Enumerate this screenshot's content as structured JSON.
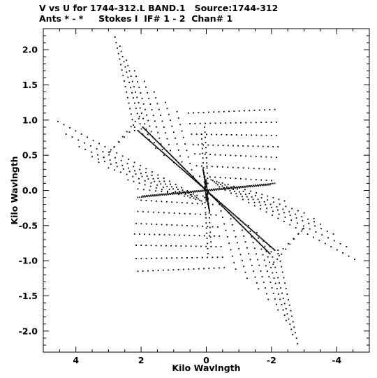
{
  "header": {
    "line1": "V vs U for 1744-312.L BAND.1   Source:1744-312",
    "line2": "Ants * - *     Stokes I  IF# 1 - 2  Chan# 1"
  },
  "chart_data": {
    "type": "scatter",
    "title": "V vs U for 1744-312.L BAND.1   Source:1744-312",
    "subtitle": "Ants * - *     Stokes I  IF# 1 - 2  Chan# 1",
    "xlabel": "Kilo Wavlngth",
    "ylabel": "Kilo Wavlngth",
    "xlim": [
      5.0,
      -5.0
    ],
    "ylim": [
      -2.3,
      2.3
    ],
    "x_ticks": [
      4,
      2,
      0,
      -2,
      -4
    ],
    "x_tick_labels": [
      "4",
      "2",
      "0",
      "-2",
      "-4"
    ],
    "y_ticks": [
      2.0,
      1.5,
      1.0,
      0.5,
      0.0,
      -0.5,
      -1.0,
      -1.5,
      -2.0
    ],
    "y_tick_labels": [
      "2.0",
      "1.5",
      "1.0",
      "0.5",
      "0.0",
      "-0.5",
      "-1.0",
      "-1.5",
      "-2.0"
    ],
    "grid": false,
    "marker_color": "#000000",
    "tracks": [
      {
        "u0": 0.4,
        "v0": -0.05,
        "u1": 4.55,
        "v1": 0.98,
        "n": 24
      },
      {
        "u0": 0.35,
        "v0": -0.08,
        "u1": 4.3,
        "v1": 0.8,
        "n": 22
      },
      {
        "u0": 0.3,
        "v0": -0.1,
        "u1": 3.9,
        "v1": 0.62,
        "n": 20
      },
      {
        "u0": 0.25,
        "v0": -0.12,
        "u1": 3.5,
        "v1": 0.48,
        "n": 18
      },
      {
        "u0": 0.2,
        "v0": -0.14,
        "u1": 3.0,
        "v1": 0.32,
        "n": 16
      },
      {
        "u0": 0.15,
        "v0": -0.15,
        "u1": 2.4,
        "v1": 0.15,
        "n": 14
      },
      {
        "u0": 0.1,
        "v0": -0.08,
        "u1": 2.1,
        "v1": 0.02,
        "n": 12
      },
      {
        "u0": 2.05,
        "v0": 1.05,
        "u1": 2.95,
        "v1": 0.55,
        "n": 8
      },
      {
        "u0": 2.2,
        "v0": 0.9,
        "u1": 3.3,
        "v1": 0.4,
        "n": 8
      },
      {
        "u0": 2.8,
        "v0": 2.18,
        "u1": 2.2,
        "v1": 0.85,
        "n": 18
      },
      {
        "u0": 2.65,
        "v0": 2.05,
        "u1": 1.95,
        "v1": 0.8,
        "n": 18
      },
      {
        "u0": 2.45,
        "v0": 1.85,
        "u1": 1.75,
        "v1": 0.72,
        "n": 16
      },
      {
        "u0": 2.2,
        "v0": 1.7,
        "u1": 1.55,
        "v1": 0.6,
        "n": 15
      },
      {
        "u0": 1.9,
        "v0": 1.55,
        "u1": 1.3,
        "v1": 0.5,
        "n": 14
      },
      {
        "u0": 1.6,
        "v0": 1.4,
        "u1": 1.0,
        "v1": 0.4,
        "n": 13
      },
      {
        "u0": 1.25,
        "v0": 1.25,
        "u1": 0.7,
        "v1": 0.32,
        "n": 12
      },
      {
        "u0": 0.9,
        "v0": 1.12,
        "u1": 0.4,
        "v1": 0.2,
        "n": 11
      },
      {
        "u0": 0.55,
        "v0": 1.1,
        "u1": -2.1,
        "v1": 1.15,
        "n": 18
      },
      {
        "u0": 0.5,
        "v0": 0.95,
        "u1": -2.15,
        "v1": 0.97,
        "n": 18
      },
      {
        "u0": 0.45,
        "v0": 0.8,
        "u1": -2.15,
        "v1": 0.78,
        "n": 18
      },
      {
        "u0": 0.4,
        "v0": 0.65,
        "u1": -2.2,
        "v1": 0.62,
        "n": 18
      },
      {
        "u0": 0.35,
        "v0": 0.52,
        "u1": -2.15,
        "v1": 0.47,
        "n": 17
      },
      {
        "u0": 0.3,
        "v0": 0.35,
        "u1": -2.1,
        "v1": 0.3,
        "n": 16
      },
      {
        "u0": 0.2,
        "v0": 0.2,
        "u1": -2.0,
        "v1": 0.14,
        "n": 15
      },
      {
        "u0": 0.15,
        "v0": 0.8,
        "u1": 0.05,
        "v1": 0.05,
        "n": 12
      },
      {
        "u0": 0.05,
        "v0": 0.9,
        "u1": -0.05,
        "v1": 0.1,
        "n": 12
      },
      {
        "u0": 1.95,
        "v0": -0.08,
        "u1": -2.1,
        "v1": 0.1,
        "n": 70
      },
      {
        "u0": 1.95,
        "v0": 0.9,
        "u1": 0.0,
        "v1": 0.0,
        "n": 70
      },
      {
        "u0": 0.0,
        "v0": 0.0,
        "u1": -2.1,
        "v1": -0.85,
        "n": 70
      },
      {
        "u0": 0.0,
        "v0": -0.05,
        "u1": -0.1,
        "v1": -0.3,
        "n": 18
      },
      {
        "u0": 0.05,
        "v0": 0.15,
        "u1": 0.0,
        "v1": -0.15,
        "n": 14
      },
      {
        "u0": -0.4,
        "v0": 0.05,
        "u1": -4.55,
        "v1": -0.98,
        "n": 24
      },
      {
        "u0": -0.35,
        "v0": 0.08,
        "u1": -4.3,
        "v1": -0.8,
        "n": 22
      },
      {
        "u0": -0.3,
        "v0": 0.1,
        "u1": -3.9,
        "v1": -0.62,
        "n": 20
      },
      {
        "u0": -0.25,
        "v0": 0.12,
        "u1": -3.5,
        "v1": -0.48,
        "n": 18
      },
      {
        "u0": -0.2,
        "v0": 0.14,
        "u1": -3.0,
        "v1": -0.32,
        "n": 16
      },
      {
        "u0": -0.15,
        "v0": 0.15,
        "u1": -2.4,
        "v1": -0.15,
        "n": 14
      },
      {
        "u0": -2.05,
        "v0": -1.05,
        "u1": -2.95,
        "v1": -0.55,
        "n": 8
      },
      {
        "u0": -2.2,
        "v0": -0.9,
        "u1": -3.3,
        "v1": -0.4,
        "n": 8
      },
      {
        "u0": -2.8,
        "v0": -2.18,
        "u1": -2.2,
        "v1": -0.85,
        "n": 18
      },
      {
        "u0": -2.65,
        "v0": -2.05,
        "u1": -1.95,
        "v1": -0.8,
        "n": 18
      },
      {
        "u0": -2.45,
        "v0": -1.85,
        "u1": -1.75,
        "v1": -0.72,
        "n": 16
      },
      {
        "u0": -2.2,
        "v0": -1.7,
        "u1": -1.55,
        "v1": -0.6,
        "n": 15
      },
      {
        "u0": -1.9,
        "v0": -1.55,
        "u1": -1.3,
        "v1": -0.5,
        "n": 14
      },
      {
        "u0": -1.6,
        "v0": -1.4,
        "u1": -1.0,
        "v1": -0.4,
        "n": 13
      },
      {
        "u0": -1.25,
        "v0": -1.25,
        "u1": -0.7,
        "v1": -0.32,
        "n": 12
      },
      {
        "u0": -0.9,
        "v0": -1.12,
        "u1": -0.4,
        "v1": -0.2,
        "n": 11
      },
      {
        "u0": -0.55,
        "v0": -1.1,
        "u1": 2.1,
        "v1": -1.15,
        "n": 18
      },
      {
        "u0": -0.5,
        "v0": -0.95,
        "u1": 2.15,
        "v1": -0.97,
        "n": 18
      },
      {
        "u0": -0.45,
        "v0": -0.8,
        "u1": 2.15,
        "v1": -0.78,
        "n": 18
      },
      {
        "u0": -0.4,
        "v0": -0.65,
        "u1": 2.2,
        "v1": -0.62,
        "n": 18
      },
      {
        "u0": -0.35,
        "v0": -0.52,
        "u1": 2.15,
        "v1": -0.47,
        "n": 17
      },
      {
        "u0": -0.3,
        "v0": -0.35,
        "u1": 2.1,
        "v1": -0.3,
        "n": 16
      },
      {
        "u0": -0.2,
        "v0": -0.2,
        "u1": 2.0,
        "v1": -0.14,
        "n": 15
      },
      {
        "u0": -0.15,
        "v0": -0.8,
        "u1": -0.05,
        "v1": -0.05,
        "n": 12
      },
      {
        "u0": -0.05,
        "v0": -0.9,
        "u1": 0.05,
        "v1": -0.1,
        "n": 12
      },
      {
        "u0": -1.95,
        "v0": 0.08,
        "u1": 2.1,
        "v1": -0.1,
        "n": 70
      },
      {
        "u0": -1.95,
        "v0": -0.9,
        "u1": 0.0,
        "v1": 0.0,
        "n": 70
      },
      {
        "u0": 0.0,
        "v0": 0.0,
        "u1": 2.1,
        "v1": 0.85,
        "n": 70
      },
      {
        "u0": 0.0,
        "v0": 0.05,
        "u1": 0.1,
        "v1": 0.3,
        "n": 18
      },
      {
        "u0": -0.05,
        "v0": -0.15,
        "u1": 0.0,
        "v1": 0.15,
        "n": 14
      }
    ]
  }
}
